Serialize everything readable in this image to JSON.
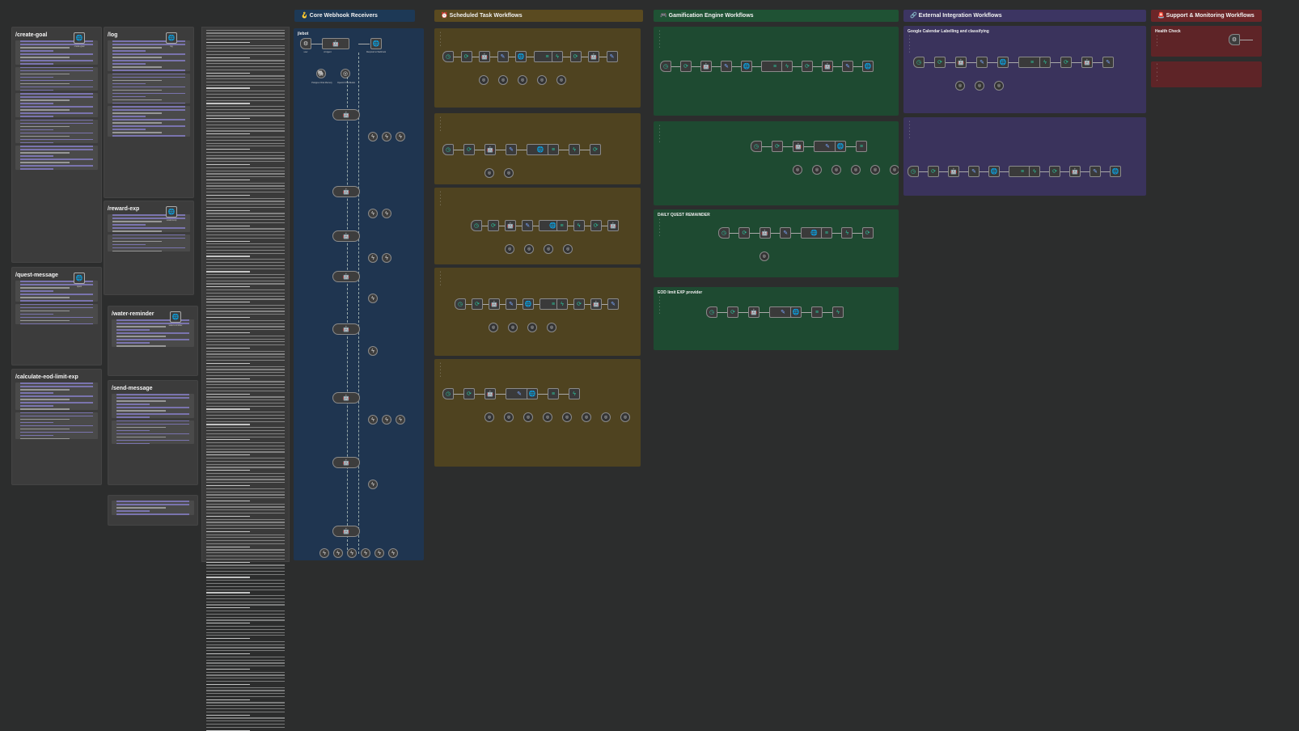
{
  "canvas": {
    "background": "#2c2d2d"
  },
  "sections": [
    {
      "id": "core",
      "title": "🪝 Core Webhook Receivers",
      "color": "#1d3956",
      "panel_color": "#1f3550"
    },
    {
      "id": "scheduled",
      "title": "⏰ Scheduled Task Workflows",
      "color": "#5a4a20",
      "panel_color": "#4f4320"
    },
    {
      "id": "gamification",
      "title": "🎮 Gamification Engine Workflows",
      "color": "#1f5234",
      "panel_color": "#1e4a31"
    },
    {
      "id": "external",
      "title": "🔗 External Integration Workflows",
      "color": "#3c3562",
      "panel_color": "#3a335c"
    },
    {
      "id": "support",
      "title": "🚨 Support & Monitoring Workflows",
      "color": "#6b2628",
      "panel_color": "#5e2427"
    }
  ],
  "api_notes": [
    {
      "title": "/create-goal",
      "node": "create-goal"
    },
    {
      "title": "/log",
      "node": "log"
    },
    {
      "title": "/quest-message",
      "node": "quest"
    },
    {
      "title": "/reward-exp",
      "node": "reward-exp"
    },
    {
      "title": "/calculate-eod-limit-exp",
      "node": ""
    },
    {
      "title": "/water-reminder",
      "node": "water-reminder"
    },
    {
      "title": "/send-message",
      "node": ""
    }
  ],
  "core": {
    "label": "jlebot",
    "nodes": [
      "user",
      "AI Agent",
      "Respond to Webhook",
      "Postgres Chat Memory",
      "OpenAI Chat Model"
    ]
  },
  "gamification": {
    "panels": [
      "",
      "",
      "DAILY QUEST REMAINDER",
      "EOD limit EXP provider"
    ]
  },
  "external": {
    "panels": [
      "Google Calendar Labelling and classifying",
      ""
    ]
  },
  "support": {
    "panels": [
      "Health Check",
      ""
    ]
  },
  "node_labels": {
    "schedule": "Schedule Trigger",
    "webhook": "Webhook",
    "agent": "AI Agent",
    "respond": "Respond to Webhook",
    "loop": "Loop Over Items",
    "if": "If",
    "code": "Code",
    "http": "HTTP Request"
  }
}
